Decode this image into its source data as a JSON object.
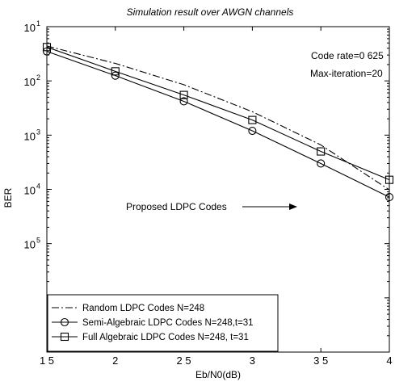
{
  "chart_data": {
    "type": "line",
    "title": "Simulation result over AWGN channels",
    "xlabel": "Eb/N0(dB)",
    "ylabel": "BER",
    "xlim": [
      1.5,
      4
    ],
    "ylim": [
      1e-05,
      10
    ],
    "y_scale": "log",
    "x_ticks": [
      1.5,
      2,
      2.5,
      3,
      3.5,
      4
    ],
    "x_tick_labels": [
      "1 5",
      "2",
      "2 5",
      "3",
      "3 5",
      "4"
    ],
    "y_tick_labels": [
      {
        "base": "10",
        "exp": "1"
      },
      {
        "base": "10",
        "exp": "2"
      },
      {
        "base": "10",
        "exp": "3"
      },
      {
        "base": "10",
        "exp": "4"
      },
      {
        "base": "10",
        "exp": "5"
      }
    ],
    "grid": false,
    "legend_position": "bottom-left",
    "annotations": [
      {
        "text": "Code rate=0 625"
      },
      {
        "text": "Max-iteration=20"
      },
      {
        "text": "Proposed LDPC Codes"
      }
    ],
    "series": [
      {
        "name": "Random LDPC Codes N=248",
        "style": "dashdot",
        "marker": "none",
        "x": [
          1.5,
          2,
          2.5,
          3,
          3.5,
          4
        ],
        "y": [
          4.4,
          2.1,
          0.85,
          0.27,
          0.066,
          0.0098
        ]
      },
      {
        "name": "Semi-Algebraic LDPC Codes N=248,t=31",
        "style": "solid",
        "marker": "circle",
        "x": [
          1.5,
          2,
          2.5,
          3,
          3.5,
          4
        ],
        "y": [
          3.5,
          1.25,
          0.42,
          0.12,
          0.03,
          0.0072
        ]
      },
      {
        "name": "Full Algebraic LDPC Codes N=248, t=31",
        "style": "solid",
        "marker": "square",
        "x": [
          1.5,
          2,
          2.5,
          3,
          3.5,
          4
        ],
        "y": [
          4.2,
          1.5,
          0.55,
          0.19,
          0.05,
          0.015
        ]
      }
    ]
  }
}
